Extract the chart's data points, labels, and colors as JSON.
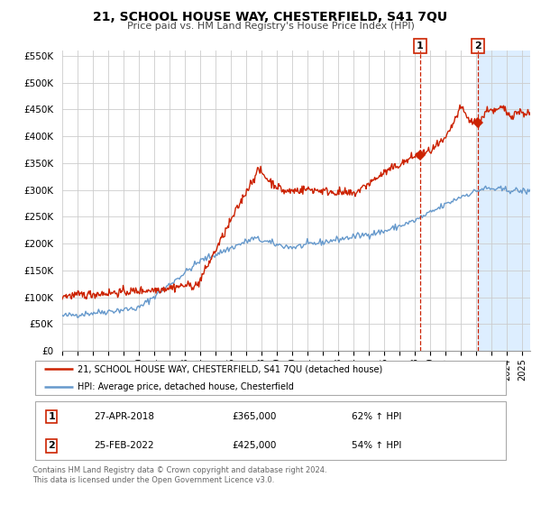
{
  "title": "21, SCHOOL HOUSE WAY, CHESTERFIELD, S41 7QU",
  "subtitle": "Price paid vs. HM Land Registry's House Price Index (HPI)",
  "ylabel_ticks": [
    "£0",
    "£50K",
    "£100K",
    "£150K",
    "£200K",
    "£250K",
    "£300K",
    "£350K",
    "£400K",
    "£450K",
    "£500K",
    "£550K"
  ],
  "ytick_values": [
    0,
    50000,
    100000,
    150000,
    200000,
    250000,
    300000,
    350000,
    400000,
    450000,
    500000,
    550000
  ],
  "ylim": [
    0,
    560000
  ],
  "xlim_start": 1995.0,
  "xlim_end": 2025.5,
  "hpi_color": "#6699cc",
  "price_color": "#cc2200",
  "marker1_x": 2018.32,
  "marker1_y": 365000,
  "marker2_x": 2022.12,
  "marker2_y": 425000,
  "vline1_x": 2018.32,
  "vline2_x": 2022.12,
  "legend_line1": "21, SCHOOL HOUSE WAY, CHESTERFIELD, S41 7QU (detached house)",
  "legend_line2": "HPI: Average price, detached house, Chesterfield",
  "annotation1_num": "1",
  "annotation1_date": "27-APR-2018",
  "annotation1_price": "£365,000",
  "annotation1_hpi": "62% ↑ HPI",
  "annotation2_num": "2",
  "annotation2_date": "25-FEB-2022",
  "annotation2_price": "£425,000",
  "annotation2_hpi": "54% ↑ HPI",
  "footer1": "Contains HM Land Registry data © Crown copyright and database right 2024.",
  "footer2": "This data is licensed under the Open Government Licence v3.0.",
  "bg_highlight_color": "#ddeeff",
  "grid_color": "#cccccc",
  "title_fontsize": 10,
  "subtitle_fontsize": 8
}
